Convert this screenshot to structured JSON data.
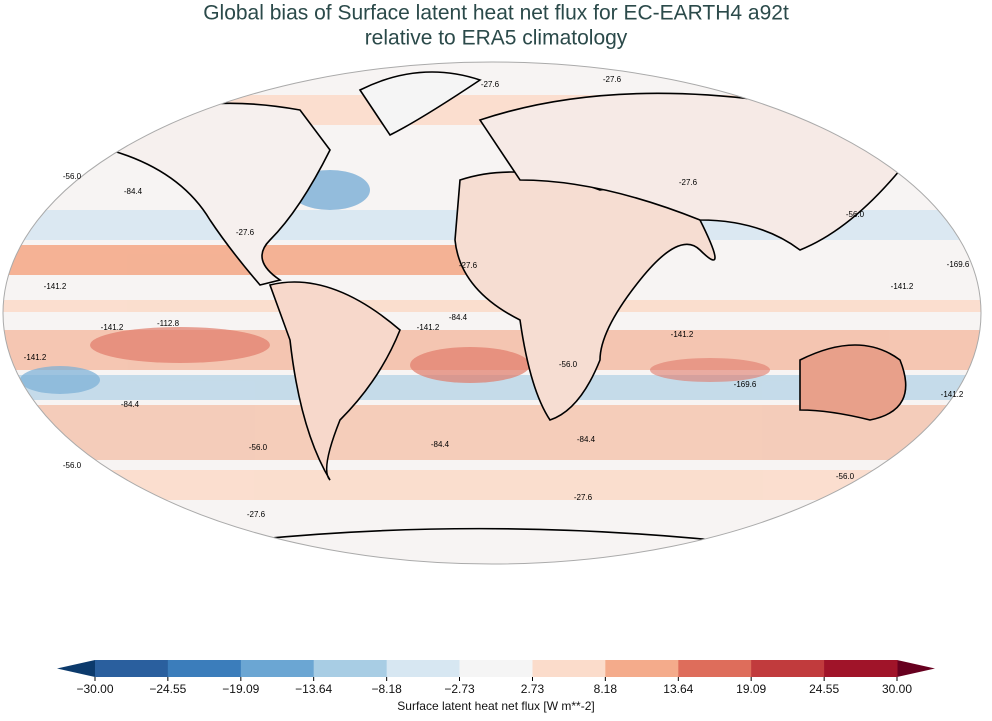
{
  "title": [
    "Global bias of Surface latent heat net flux for EC-EARTH4 a92t",
    "relative to ERA5 climatology"
  ],
  "map": {
    "contour_labels": [
      "-27.6",
      "-27.6",
      "-56.0",
      "-84.4",
      "-27.6",
      "-141.2",
      "-141.2",
      "-112.8",
      "-141.2",
      "-84.4",
      "-141.2",
      "-27.6",
      "-141.2",
      "-169.6",
      "-141.2",
      "-169.6",
      "-141.2",
      "-56.0",
      "-84.4",
      "-84.4",
      "-56.0",
      "-56.0",
      "-27.6",
      "-27.6",
      "-56.0",
      "-27.6",
      "-56.0",
      "-84.4"
    ]
  },
  "colorbar": {
    "ticks": [
      {
        "value": -30,
        "label": "−30.00"
      },
      {
        "value": -24.55,
        "label": "−24.55"
      },
      {
        "value": -19.09,
        "label": "−19.09"
      },
      {
        "value": -13.64,
        "label": "−13.64"
      },
      {
        "value": -8.18,
        "label": "−8.18"
      },
      {
        "value": -2.73,
        "label": "−2.73"
      },
      {
        "value": 2.73,
        "label": "2.73"
      },
      {
        "value": 8.18,
        "label": "8.18"
      },
      {
        "value": 13.64,
        "label": "13.64"
      },
      {
        "value": 19.09,
        "label": "19.09"
      },
      {
        "value": 24.55,
        "label": "24.55"
      },
      {
        "value": 30,
        "label": "30.00"
      }
    ],
    "colors": [
      "#2a5f9e",
      "#3b7dbb",
      "#6ba6d3",
      "#a8cde4",
      "#d7e7f2",
      "#f5f5f5",
      "#fbdccb",
      "#f4ab8b",
      "#de6d5b",
      "#c13b3d",
      "#a01429"
    ],
    "under_color": "#0c3a6c",
    "over_color": "#67001f",
    "label": "Surface latent heat net flux [W m**-2]"
  }
}
